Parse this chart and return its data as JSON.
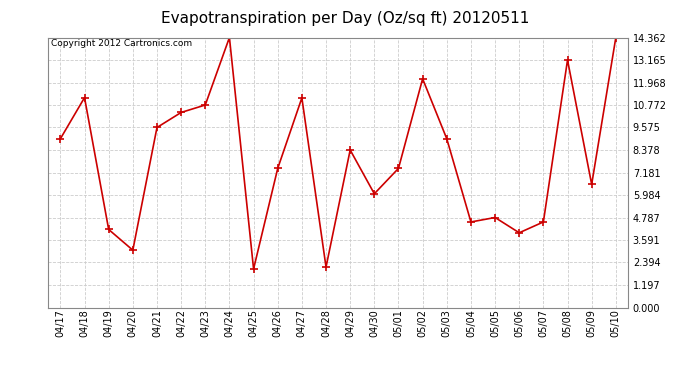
{
  "title": "Evapotranspiration per Day (Oz/sq ft) 20120511",
  "copyright_text": "Copyright 2012 Cartronics.com",
  "x_labels": [
    "04/17",
    "04/18",
    "04/19",
    "04/20",
    "04/21",
    "04/22",
    "04/23",
    "04/24",
    "04/25",
    "04/26",
    "04/27",
    "04/28",
    "04/29",
    "04/30",
    "05/01",
    "05/02",
    "05/03",
    "05/04",
    "05/05",
    "05/06",
    "05/07",
    "05/08",
    "05/09",
    "05/10"
  ],
  "y_values": [
    8.975,
    11.165,
    4.15,
    3.05,
    9.575,
    10.375,
    10.772,
    14.362,
    2.05,
    7.4,
    11.15,
    2.15,
    8.378,
    6.05,
    7.4,
    12.165,
    8.975,
    4.55,
    4.787,
    3.975,
    4.55,
    13.165,
    6.55,
    14.362
  ],
  "line_color": "#cc0000",
  "marker": "+",
  "marker_size": 6,
  "background_color": "#ffffff",
  "plot_bg_color": "#ffffff",
  "grid_color": "#cccccc",
  "y_ticks": [
    0.0,
    1.197,
    2.394,
    3.591,
    4.787,
    5.984,
    7.181,
    8.378,
    9.575,
    10.772,
    11.968,
    13.165,
    14.362
  ],
  "ylim": [
    0.0,
    14.362
  ],
  "title_fontsize": 11,
  "tick_fontsize": 7,
  "copyright_fontsize": 6.5,
  "ytick_fontsize": 7
}
